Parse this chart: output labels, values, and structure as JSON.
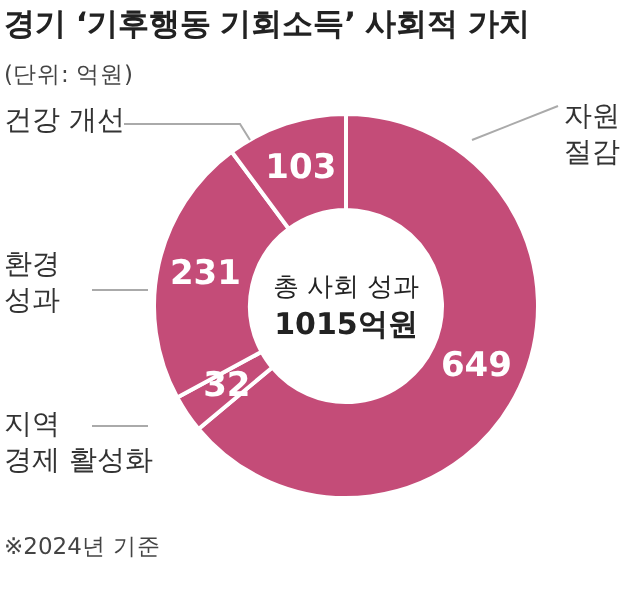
{
  "chart_data": {
    "type": "donut",
    "title": "경기 ‘기후행동 기회소득’ 사회적 가치",
    "subtitle": "(단위: 억원)",
    "categories": [
      "자원 절감",
      "지역 경제 활성화",
      "환경 성과",
      "건강 개선"
    ],
    "values": [
      649,
      32,
      231,
      103
    ],
    "colors": [
      "#c44c78",
      "#c44c78",
      "#c44c78",
      "#c44c78"
    ],
    "data_labels": true,
    "legend": false,
    "annotations": [
      "총 사회 성과",
      "1015억원",
      "※2024년 기준"
    ]
  }
}
